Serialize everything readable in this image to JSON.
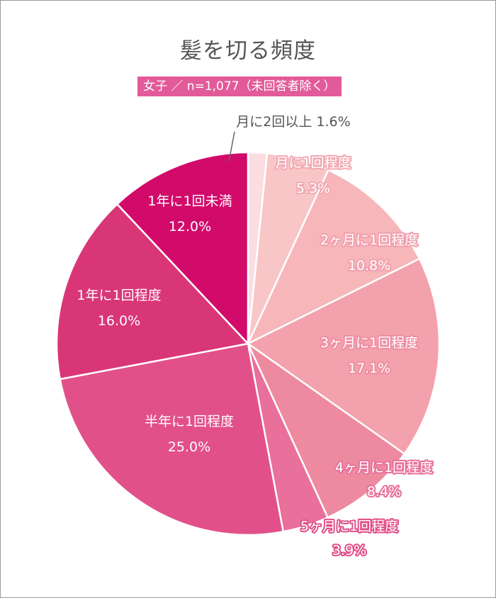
{
  "chart_data": {
    "type": "pie",
    "title": "髪を切る頻度",
    "subtitle": "女子 ／ n=1,077（未回答者除く）",
    "slices": [
      {
        "label": "月に2回以上",
        "value": 1.6,
        "value_label": "1.6%",
        "color": "#fbdde2"
      },
      {
        "label": "月に1回程度",
        "value": 5.3,
        "value_label": "5.3%",
        "color": "#f8c6c6"
      },
      {
        "label": "2ヶ月に1回程度",
        "value": 10.8,
        "value_label": "10.8%",
        "color": "#f6b6ba"
      },
      {
        "label": "3ヶ月に1回程度",
        "value": 17.1,
        "value_label": "17.1%",
        "color": "#f3a1ac"
      },
      {
        "label": "4ヶ月に1回程度",
        "value": 8.4,
        "value_label": "8.4%",
        "color": "#ee8aa0"
      },
      {
        "label": "5ヶ月に1回程度",
        "value": 3.9,
        "value_label": "3.9%",
        "color": "#e8709a"
      },
      {
        "label": "半年に1回程度",
        "value": 25.0,
        "value_label": "25.0%",
        "color": "#e25089"
      },
      {
        "label": "1年に1回程度",
        "value": 16.0,
        "value_label": "16.0%",
        "color": "#d93678"
      },
      {
        "label": "1年に1回未満",
        "value": 12.0,
        "value_label": "12.0%",
        "color": "#d20a6a"
      }
    ]
  }
}
